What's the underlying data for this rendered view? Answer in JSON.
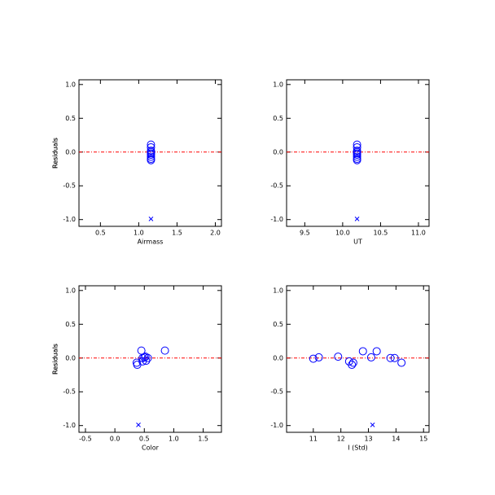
{
  "chart_data": [
    {
      "type": "scatter",
      "x_label": "Airmass",
      "y_label": "Residuals",
      "xlim": [
        0.22,
        2.08
      ],
      "xticks": [
        0.5,
        {
          "value": 1,
          "label": "1.0"
        },
        1.5,
        {
          "value": 2,
          "label": "2.0"
        }
      ],
      "ylim": [
        -1.1,
        1.07
      ],
      "yticks": [
        {
          "value": 1,
          "label": "1.0"
        },
        0.5,
        {
          "value": 0,
          "label": "0.0"
        },
        -0.5,
        {
          "value": -1,
          "label": "-1.0"
        }
      ],
      "hline": 0,
      "hline_color": "#ff0000",
      "series": [
        {
          "marker": "o",
          "color": "#0000ff",
          "x": [
            1.16,
            1.16,
            1.16,
            1.16,
            1.16,
            1.16,
            1.16,
            1.16,
            1.16
          ],
          "values": [
            0.11,
            0.07,
            0.02,
            0.0,
            -0.02,
            -0.04,
            -0.07,
            -0.1,
            -0.12
          ]
        },
        {
          "marker": "x",
          "color": "#0000ff",
          "x": [
            1.16
          ],
          "values": [
            -0.99
          ]
        }
      ]
    },
    {
      "type": "scatter",
      "x_label": "UT",
      "y_label": "Residuals",
      "xlim": [
        9.26,
        11.14
      ],
      "xticks": [
        9.5,
        {
          "value": 10,
          "label": "10.0"
        },
        10.5,
        {
          "value": 11,
          "label": "11.0"
        }
      ],
      "ylim": [
        -1.1,
        1.07
      ],
      "yticks": [
        {
          "value": 1,
          "label": "1.0"
        },
        0.5,
        {
          "value": 0,
          "label": "0.0"
        },
        -0.5,
        {
          "value": -1,
          "label": "-1.0"
        }
      ],
      "hline": 0,
      "hline_color": "#ff0000",
      "series": [
        {
          "marker": "o",
          "color": "#0000ff",
          "x": [
            10.19,
            10.19,
            10.19,
            10.19,
            10.19,
            10.19,
            10.19,
            10.19,
            10.19
          ],
          "values": [
            0.11,
            0.07,
            0.02,
            0.0,
            -0.02,
            -0.04,
            -0.07,
            -0.1,
            -0.12
          ]
        },
        {
          "marker": "x",
          "color": "#0000ff",
          "x": [
            10.19
          ],
          "values": [
            -0.99
          ]
        }
      ]
    },
    {
      "type": "scatter",
      "x_label": "Color",
      "y_label": "Residuals",
      "xlim": [
        -0.61,
        1.81
      ],
      "xticks": [
        -0.5,
        {
          "value": 0,
          "label": "0.0"
        },
        0.5,
        {
          "value": 1,
          "label": "1.0"
        },
        1.5
      ],
      "ylim": [
        -1.1,
        1.07
      ],
      "yticks": [
        {
          "value": 1,
          "label": "1.0"
        },
        0.5,
        {
          "value": 0,
          "label": "0.0"
        },
        -0.5,
        {
          "value": -1,
          "label": "-1.0"
        }
      ],
      "hline": 0,
      "hline_color": "#ff0000",
      "series": [
        {
          "marker": "o",
          "color": "#0000ff",
          "x": [
            0.37,
            0.38,
            0.45,
            0.47,
            0.5,
            0.52,
            0.53,
            0.56,
            0.85,
            0.47
          ],
          "values": [
            -0.07,
            -0.1,
            0.11,
            0.0,
            0.01,
            0.02,
            -0.04,
            0.0,
            0.11,
            -0.05
          ]
        },
        {
          "marker": "x",
          "color": "#0000ff",
          "x": [
            0.4
          ],
          "values": [
            -0.99
          ]
        }
      ]
    },
    {
      "type": "scatter",
      "x_label": "I (Std)",
      "y_label": "Residuals",
      "xlim": [
        10.03,
        15.2
      ],
      "xticks": [
        11,
        12,
        13,
        14,
        15
      ],
      "ylim": [
        -1.1,
        1.07
      ],
      "yticks": [
        {
          "value": 1,
          "label": "1.0"
        },
        0.5,
        {
          "value": 0,
          "label": "0.0"
        },
        -0.5,
        {
          "value": -1,
          "label": "-1.0"
        }
      ],
      "hline": 0,
      "hline_color": "#ff0000",
      "series": [
        {
          "marker": "o",
          "color": "#0000ff",
          "x": [
            11.0,
            11.2,
            11.9,
            12.3,
            12.4,
            12.45,
            12.8,
            13.1,
            13.3,
            13.8,
            13.95,
            14.2
          ],
          "values": [
            -0.01,
            0.01,
            0.02,
            -0.05,
            -0.1,
            -0.07,
            0.1,
            0.01,
            0.1,
            0.0,
            0.0,
            -0.07
          ]
        },
        {
          "marker": "x",
          "color": "#0000ff",
          "x": [
            13.15
          ],
          "values": [
            -0.99
          ]
        }
      ]
    }
  ]
}
